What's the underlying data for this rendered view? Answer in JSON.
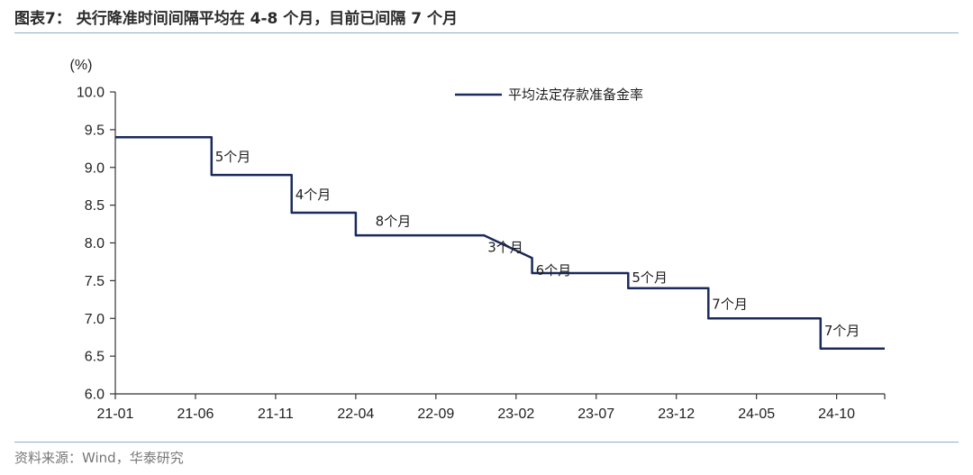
{
  "header": {
    "title": "图表7：  央行降准时间间隔平均在 4-8 个月，目前已间隔 7 个月"
  },
  "footer": {
    "source": "资料来源：Wind，华泰研究"
  },
  "colors": {
    "line": "#1b2a5c",
    "axis": "#333333",
    "rule": "#8fb0c8"
  },
  "chart_data": {
    "type": "line",
    "unit_label": "(%)",
    "ylim": [
      6.0,
      10.0
    ],
    "y_ticks": [
      "6.0",
      "6.5",
      "7.0",
      "7.5",
      "8.0",
      "8.5",
      "9.0",
      "9.5",
      "10.0"
    ],
    "y_tick_values": [
      6.0,
      6.5,
      7.0,
      7.5,
      8.0,
      8.5,
      9.0,
      9.5,
      10.0
    ],
    "x_ticks": [
      "21-01",
      "21-06",
      "21-11",
      "22-04",
      "22-09",
      "23-02",
      "23-07",
      "23-12",
      "24-05",
      "24-10"
    ],
    "x_range_months": [
      "2021-01",
      "2025-01"
    ],
    "grid": false,
    "legend_position": "top-center",
    "series": [
      {
        "name": "平均法定存款准备金率",
        "points": [
          {
            "x": "2021-01",
            "y": 9.4
          },
          {
            "x": "2021-07",
            "y": 9.4
          },
          {
            "x": "2021-07",
            "y": 8.9
          },
          {
            "x": "2021-12",
            "y": 8.9
          },
          {
            "x": "2021-12",
            "y": 8.4
          },
          {
            "x": "2022-04",
            "y": 8.4
          },
          {
            "x": "2022-04",
            "y": 8.1
          },
          {
            "x": "2022-12",
            "y": 8.1
          },
          {
            "x": "2023-03",
            "y": 7.8
          },
          {
            "x": "2023-03",
            "y": 7.8
          },
          {
            "x": "2023-03",
            "y": 7.6
          },
          {
            "x": "2023-09",
            "y": 7.6
          },
          {
            "x": "2023-09",
            "y": 7.4
          },
          {
            "x": "2024-02",
            "y": 7.4
          },
          {
            "x": "2024-02",
            "y": 7.0
          },
          {
            "x": "2024-09",
            "y": 7.0
          },
          {
            "x": "2024-09",
            "y": 6.6
          },
          {
            "x": "2025-01",
            "y": 6.6
          }
        ]
      }
    ],
    "annotations": [
      {
        "text": "5个月",
        "x": "2021-07",
        "y": 9.15
      },
      {
        "text": "4个月",
        "x": "2021-12",
        "y": 8.65
      },
      {
        "text": "8个月",
        "x": "2022-05",
        "y": 8.3
      },
      {
        "text": "3个月",
        "x": "2022-12",
        "y": 7.95
      },
      {
        "text": "6个月",
        "x": "2023-03",
        "y": 7.65
      },
      {
        "text": "5个月",
        "x": "2023-09",
        "y": 7.55
      },
      {
        "text": "7个月",
        "x": "2024-02",
        "y": 7.2
      },
      {
        "text": "7个月",
        "x": "2024-09",
        "y": 6.85
      }
    ]
  }
}
